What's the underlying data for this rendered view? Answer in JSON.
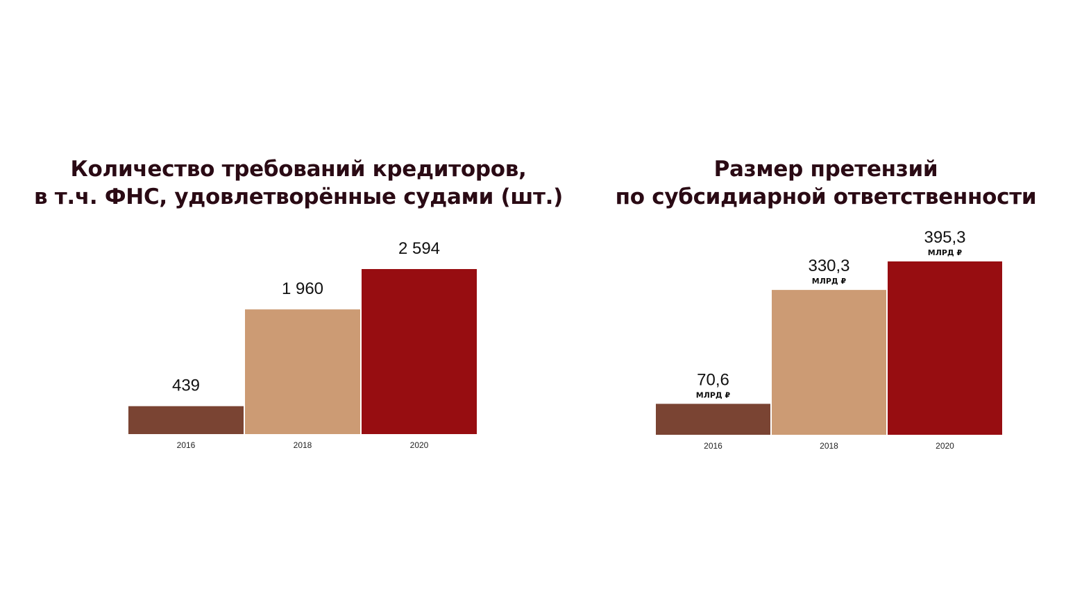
{
  "colors": {
    "bar_2016": "#7a4433",
    "bar_2018": "#cc9b74",
    "bar_2020": "#970d11"
  },
  "chart_data": [
    {
      "type": "bar",
      "title_lines": [
        "Количество требований кредиторов,",
        "в т.ч. ФНС, удовлетворённые судами (шт.)"
      ],
      "categories": [
        "2016",
        "2018",
        "2020"
      ],
      "values": [
        439,
        1960,
        2594
      ],
      "value_labels": [
        "439",
        "1 960",
        "2 594"
      ],
      "unit_label": "",
      "ylim": [
        0,
        2594
      ],
      "grid": false
    },
    {
      "type": "bar",
      "title_lines": [
        "Размер претензий",
        "по субсидиарной ответственности"
      ],
      "categories": [
        "2016",
        "2018",
        "2020"
      ],
      "values": [
        70.6,
        330.3,
        395.3
      ],
      "value_labels": [
        "70,6",
        "330,3",
        "395,3"
      ],
      "unit_label": "МЛРД ₽",
      "ylim": [
        0,
        395.3
      ],
      "grid": false
    }
  ]
}
